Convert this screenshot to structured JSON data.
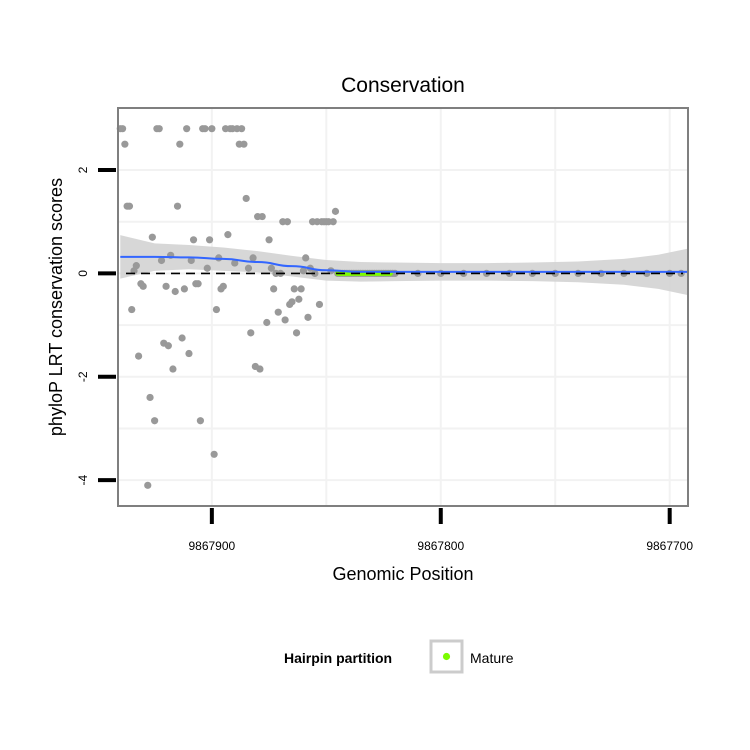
{
  "chart_data": {
    "type": "scatter",
    "title": "Conservation",
    "xlabel": "Genomic Position",
    "ylabel": "phyloP LRT conservation scores",
    "x_reversed": true,
    "xlim": [
      9867941,
      9867692
    ],
    "ylim": [
      -4.5,
      3.2
    ],
    "x_ticks": [
      9867900,
      9867800,
      9867700
    ],
    "x_tick_labels": [
      "9867900",
      "9867800",
      "9867700"
    ],
    "y_ticks": [
      -4,
      -2,
      0,
      2
    ],
    "y_tick_labels": [
      "-4",
      "-2",
      "0",
      "2"
    ],
    "x_grid_minor": [
      9867850,
      9867750
    ],
    "y_grid_minor": [
      -3,
      -1,
      1
    ],
    "reference_line": {
      "y": 0,
      "style": "dashed"
    },
    "colors": {
      "points": "#999999",
      "mature": "#7cfc00",
      "smooth": "#3366ff",
      "ribbon": "#d3d3d3",
      "panel_border": "#7f7f7f",
      "grid": "#f2f2f2"
    },
    "points": [
      {
        "x": 9867940,
        "y": 2.8
      },
      {
        "x": 9867939,
        "y": 2.8
      },
      {
        "x": 9867938,
        "y": 2.5
      },
      {
        "x": 9867937,
        "y": 1.3
      },
      {
        "x": 9867936,
        "y": 1.3
      },
      {
        "x": 9867935,
        "y": -0.7
      },
      {
        "x": 9867934,
        "y": 0.05
      },
      {
        "x": 9867933,
        "y": 0.15
      },
      {
        "x": 9867932,
        "y": -1.6
      },
      {
        "x": 9867931,
        "y": -0.2
      },
      {
        "x": 9867930,
        "y": -0.25
      },
      {
        "x": 9867928,
        "y": -4.1
      },
      {
        "x": 9867927,
        "y": -2.4
      },
      {
        "x": 9867926,
        "y": 0.7
      },
      {
        "x": 9867925,
        "y": -2.85
      },
      {
        "x": 9867924,
        "y": 2.8
      },
      {
        "x": 9867923,
        "y": 2.8
      },
      {
        "x": 9867922,
        "y": 0.25
      },
      {
        "x": 9867921,
        "y": -1.35
      },
      {
        "x": 9867920,
        "y": -0.25
      },
      {
        "x": 9867919,
        "y": -1.4
      },
      {
        "x": 9867918,
        "y": 0.35
      },
      {
        "x": 9867917,
        "y": -1.85
      },
      {
        "x": 9867916,
        "y": -0.35
      },
      {
        "x": 9867915,
        "y": 1.3
      },
      {
        "x": 9867914,
        "y": 2.5
      },
      {
        "x": 9867913,
        "y": -1.25
      },
      {
        "x": 9867912,
        "y": -0.3
      },
      {
        "x": 9867911,
        "y": 2.8
      },
      {
        "x": 9867910,
        "y": -1.55
      },
      {
        "x": 9867909,
        "y": 0.25
      },
      {
        "x": 9867908,
        "y": 0.65
      },
      {
        "x": 9867907,
        "y": -0.2
      },
      {
        "x": 9867906,
        "y": -0.2
      },
      {
        "x": 9867905,
        "y": -2.85
      },
      {
        "x": 9867904,
        "y": 2.8
      },
      {
        "x": 9867903,
        "y": 2.8
      },
      {
        "x": 9867902,
        "y": 0.1
      },
      {
        "x": 9867901,
        "y": 0.65
      },
      {
        "x": 9867900,
        "y": 2.8
      },
      {
        "x": 9867899,
        "y": -3.5
      },
      {
        "x": 9867898,
        "y": -0.7
      },
      {
        "x": 9867897,
        "y": 0.3
      },
      {
        "x": 9867896,
        "y": -0.3
      },
      {
        "x": 9867895,
        "y": -0.25
      },
      {
        "x": 9867894,
        "y": 2.8
      },
      {
        "x": 9867893,
        "y": 0.75
      },
      {
        "x": 9867892,
        "y": 2.8
      },
      {
        "x": 9867891,
        "y": 2.8
      },
      {
        "x": 9867890,
        "y": 0.2
      },
      {
        "x": 9867889,
        "y": 2.8
      },
      {
        "x": 9867888,
        "y": 2.5
      },
      {
        "x": 9867887,
        "y": 2.8
      },
      {
        "x": 9867886,
        "y": 2.5
      },
      {
        "x": 9867885,
        "y": 1.45
      },
      {
        "x": 9867884,
        "y": 0.1
      },
      {
        "x": 9867883,
        "y": -1.15
      },
      {
        "x": 9867882,
        "y": 0.3
      },
      {
        "x": 9867881,
        "y": -1.8
      },
      {
        "x": 9867880,
        "y": 1.1
      },
      {
        "x": 9867879,
        "y": -1.85
      },
      {
        "x": 9867878,
        "y": 1.1
      },
      {
        "x": 9867876,
        "y": -0.95
      },
      {
        "x": 9867875,
        "y": 0.65
      },
      {
        "x": 9867874,
        "y": 0.1
      },
      {
        "x": 9867873,
        "y": -0.3
      },
      {
        "x": 9867872,
        "y": 0.0
      },
      {
        "x": 9867871,
        "y": -0.75
      },
      {
        "x": 9867870,
        "y": 0.0
      },
      {
        "x": 9867869,
        "y": 1.0
      },
      {
        "x": 9867868,
        "y": -0.9
      },
      {
        "x": 9867867,
        "y": 1.0
      },
      {
        "x": 9867866,
        "y": -0.6
      },
      {
        "x": 9867865,
        "y": -0.55
      },
      {
        "x": 9867864,
        "y": -0.3
      },
      {
        "x": 9867863,
        "y": -1.15
      },
      {
        "x": 9867862,
        "y": -0.5
      },
      {
        "x": 9867861,
        "y": -0.3
      },
      {
        "x": 9867860,
        "y": 0.05
      },
      {
        "x": 9867859,
        "y": 0.3
      },
      {
        "x": 9867858,
        "y": -0.85
      },
      {
        "x": 9867857,
        "y": 0.1
      },
      {
        "x": 9867856,
        "y": 1.0
      },
      {
        "x": 9867855,
        "y": 0.0
      },
      {
        "x": 9867854,
        "y": 1.0
      },
      {
        "x": 9867853,
        "y": -0.6
      },
      {
        "x": 9867852,
        "y": 1.0
      },
      {
        "x": 9867851,
        "y": 1.0
      },
      {
        "x": 9867850,
        "y": 1.0
      },
      {
        "x": 9867849,
        "y": 1.0
      },
      {
        "x": 9867848,
        "y": 0.05
      },
      {
        "x": 9867847,
        "y": 1.0
      },
      {
        "x": 9867846,
        "y": 1.2
      },
      {
        "x": 9867845,
        "y": 0.0
      },
      {
        "x": 9867844,
        "y": 0.0
      },
      {
        "x": 9867843,
        "y": 0.0
      },
      {
        "x": 9867842,
        "y": 0.0
      },
      {
        "x": 9867841,
        "y": 0.0
      },
      {
        "x": 9867840,
        "y": 0.0
      },
      {
        "x": 9867839,
        "y": 0.0
      },
      {
        "x": 9867838,
        "y": 0.0
      },
      {
        "x": 9867837,
        "y": 0.0
      },
      {
        "x": 9867836,
        "y": 0.0
      },
      {
        "x": 9867835,
        "y": 0.0
      },
      {
        "x": 9867834,
        "y": 0.0
      },
      {
        "x": 9867833,
        "y": 0.0
      },
      {
        "x": 9867832,
        "y": 0.0
      },
      {
        "x": 9867831,
        "y": 0.0
      },
      {
        "x": 9867830,
        "y": 0.0
      },
      {
        "x": 9867829,
        "y": 0.0
      },
      {
        "x": 9867828,
        "y": 0.0
      },
      {
        "x": 9867827,
        "y": 0.0
      },
      {
        "x": 9867826,
        "y": 0.0
      },
      {
        "x": 9867825,
        "y": 0.0
      },
      {
        "x": 9867824,
        "y": 0.0
      },
      {
        "x": 9867823,
        "y": 0.0
      },
      {
        "x": 9867822,
        "y": 0.0
      },
      {
        "x": 9867821,
        "y": 0.0
      },
      {
        "x": 9867820,
        "y": 0.0
      },
      {
        "x": 9867810,
        "y": 0.0
      },
      {
        "x": 9867800,
        "y": 0.0
      },
      {
        "x": 9867790,
        "y": 0.0
      },
      {
        "x": 9867780,
        "y": 0.0
      },
      {
        "x": 9867770,
        "y": 0.0
      },
      {
        "x": 9867760,
        "y": 0.0
      },
      {
        "x": 9867750,
        "y": 0.0
      },
      {
        "x": 9867740,
        "y": 0.0
      },
      {
        "x": 9867730,
        "y": 0.0
      },
      {
        "x": 9867720,
        "y": 0.0
      },
      {
        "x": 9867710,
        "y": 0.0
      },
      {
        "x": 9867700,
        "y": 0.0
      },
      {
        "x": 9867695,
        "y": 0.0
      }
    ],
    "mature_segment": {
      "x_start": 9867845,
      "x_end": 9867822,
      "y": 0.0
    },
    "smooth": [
      {
        "x": 9867940,
        "y": 0.32,
        "ymin": -0.1,
        "ymax": 0.74
      },
      {
        "x": 9867925,
        "y": 0.32,
        "ymin": 0.05,
        "ymax": 0.58
      },
      {
        "x": 9867910,
        "y": 0.31,
        "ymin": 0.08,
        "ymax": 0.55
      },
      {
        "x": 9867895,
        "y": 0.28,
        "ymin": 0.05,
        "ymax": 0.5
      },
      {
        "x": 9867880,
        "y": 0.22,
        "ymin": 0.02,
        "ymax": 0.43
      },
      {
        "x": 9867865,
        "y": 0.14,
        "ymin": -0.06,
        "ymax": 0.34
      },
      {
        "x": 9867850,
        "y": 0.06,
        "ymin": -0.14,
        "ymax": 0.26
      },
      {
        "x": 9867835,
        "y": 0.03,
        "ymin": -0.16,
        "ymax": 0.22
      },
      {
        "x": 9867820,
        "y": 0.03,
        "ymin": -0.15,
        "ymax": 0.21
      },
      {
        "x": 9867800,
        "y": 0.03,
        "ymin": -0.14,
        "ymax": 0.2
      },
      {
        "x": 9867780,
        "y": 0.03,
        "ymin": -0.14,
        "ymax": 0.2
      },
      {
        "x": 9867760,
        "y": 0.03,
        "ymin": -0.15,
        "ymax": 0.21
      },
      {
        "x": 9867740,
        "y": 0.03,
        "ymin": -0.17,
        "ymax": 0.23
      },
      {
        "x": 9867720,
        "y": 0.03,
        "ymin": -0.22,
        "ymax": 0.28
      },
      {
        "x": 9867705,
        "y": 0.03,
        "ymin": -0.3,
        "ymax": 0.36
      },
      {
        "x": 9867692,
        "y": 0.03,
        "ymin": -0.42,
        "ymax": 0.48
      }
    ],
    "legend": {
      "title": "Hairpin partition",
      "entries": [
        "Mature"
      ],
      "placement": "bottom"
    }
  }
}
